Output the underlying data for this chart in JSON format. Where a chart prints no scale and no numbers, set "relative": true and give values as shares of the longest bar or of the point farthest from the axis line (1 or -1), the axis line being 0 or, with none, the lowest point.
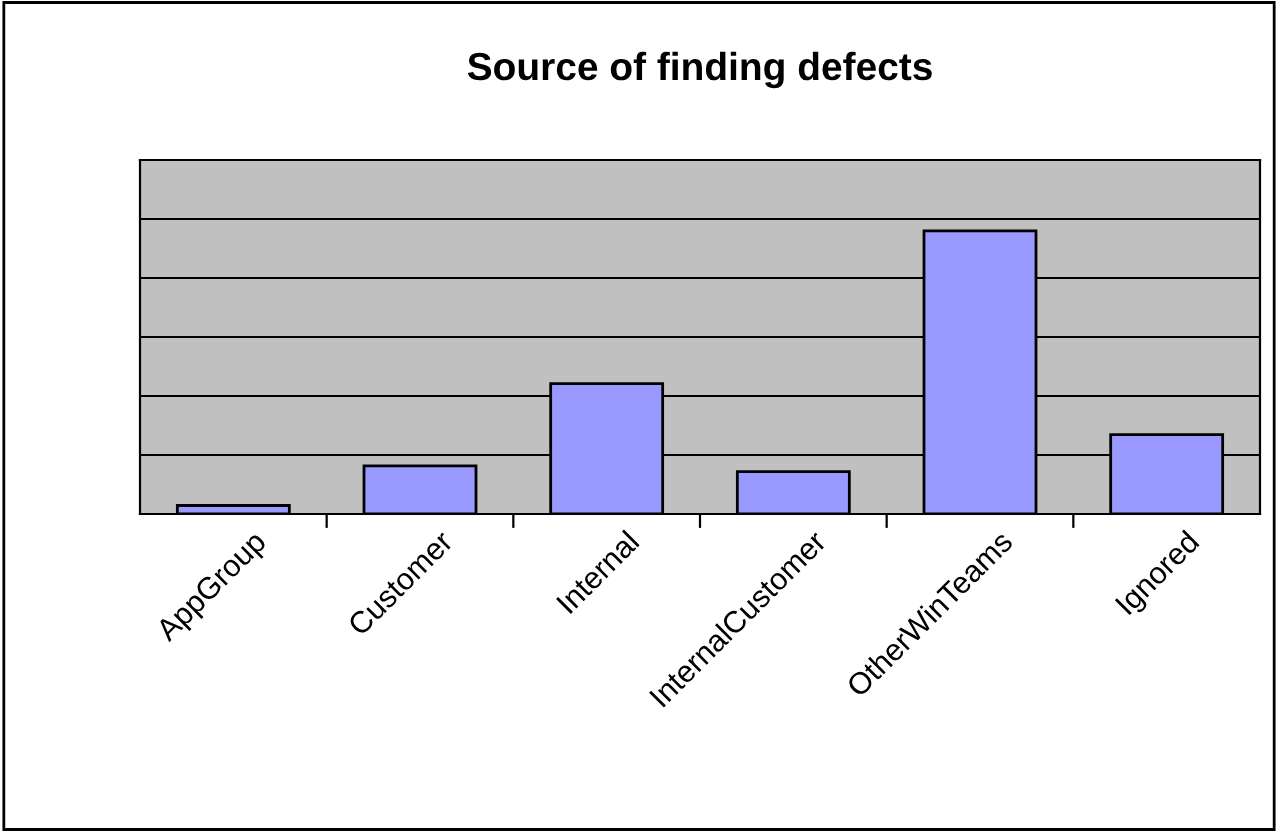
{
  "chart_data": {
    "type": "bar",
    "title": "Source of finding defects",
    "categories": [
      "AppGroup",
      "Customer",
      "Internal",
      "InternalCustomer",
      "OtherWinTeams",
      "Ignored"
    ],
    "values": [
      0.03,
      0.17,
      0.46,
      0.15,
      1,
      0.28
    ],
    "color": "#9999ff",
    "relative": true,
    "grid": "y"
  }
}
